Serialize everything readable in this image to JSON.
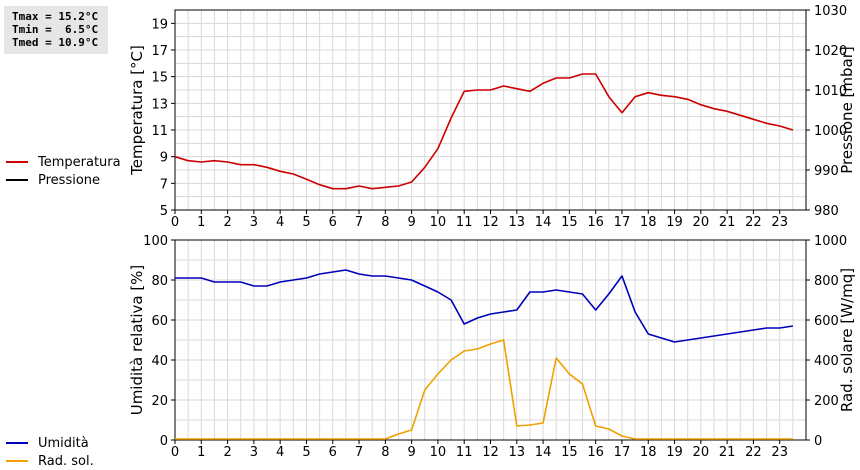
{
  "stats": {
    "tmax": "Tmax = 15.2°C",
    "tmin": "Tmin =  6.5°C",
    "tmed": "Tmed = 10.9°C"
  },
  "colors": {
    "temperature": "#cc0000",
    "pressure": "#000000",
    "humidity": "#0000bb",
    "radiation": "#f0a000",
    "grid": "#d9d9d9",
    "stats_bg": "#e6e6e6"
  },
  "legend_top": [
    {
      "label": "Temperatura",
      "color": "#cc0000"
    },
    {
      "label": "Pressione",
      "color": "#000000"
    }
  ],
  "legend_bottom": [
    {
      "label": "Umidità",
      "color": "#0000bb"
    },
    {
      "label": "Rad. sol.",
      "color": "#f0a000"
    }
  ],
  "chart_data": [
    {
      "type": "line",
      "ylabel": "Temperatura [°C]",
      "y2label": "Pressione [mbar]",
      "xlim": [
        0,
        24
      ],
      "ylim": [
        5,
        20
      ],
      "y2lim": [
        980,
        1030
      ],
      "x_ticks": [
        0,
        1,
        2,
        3,
        4,
        5,
        6,
        7,
        8,
        9,
        10,
        11,
        12,
        13,
        14,
        15,
        16,
        17,
        18,
        19,
        20,
        21,
        22,
        23
      ],
      "y_ticks": [
        5,
        7,
        9,
        11,
        13,
        15,
        17,
        19
      ],
      "y2_ticks": [
        980,
        990,
        1000,
        1010,
        1020,
        1030
      ],
      "grid": true,
      "legend": "left",
      "series": [
        {
          "name": "Temperatura",
          "axis": "left",
          "color": "#cc0000",
          "x": [
            0,
            0.5,
            1,
            1.5,
            2,
            2.5,
            3,
            3.5,
            4,
            4.5,
            5,
            5.5,
            6,
            6.5,
            7,
            7.5,
            8,
            8.5,
            9,
            9.5,
            10,
            10.5,
            11,
            11.5,
            12,
            12.5,
            13,
            13.5,
            14,
            14.5,
            15,
            15.5,
            16,
            16.5,
            17,
            17.5,
            18,
            18.5,
            19,
            19.5,
            20,
            20.5,
            21,
            21.5,
            22,
            22.5,
            23,
            23.5
          ],
          "y": [
            9.0,
            8.7,
            8.6,
            8.7,
            8.6,
            8.4,
            8.4,
            8.2,
            7.9,
            7.7,
            7.3,
            6.9,
            6.6,
            6.6,
            6.8,
            6.6,
            6.7,
            6.8,
            7.1,
            8.2,
            9.6,
            11.9,
            13.9,
            14.0,
            14.0,
            14.3,
            14.1,
            13.9,
            14.5,
            14.9,
            14.9,
            15.2,
            15.2,
            13.5,
            12.3,
            13.5,
            13.8,
            13.6,
            13.5,
            13.3,
            12.9,
            12.6,
            12.4,
            12.1,
            11.8,
            11.5,
            11.3,
            11.0
          ]
        },
        {
          "name": "Pressione",
          "axis": "right",
          "color": "#000000",
          "x": [],
          "y": []
        }
      ]
    },
    {
      "type": "line",
      "ylabel": "Umidità relativa [%]",
      "y2label": "Rad. solare [W/mq]",
      "xlim": [
        0,
        24
      ],
      "ylim": [
        0,
        100
      ],
      "y2lim": [
        0,
        1000
      ],
      "x_ticks": [
        0,
        1,
        2,
        3,
        4,
        5,
        6,
        7,
        8,
        9,
        10,
        11,
        12,
        13,
        14,
        15,
        16,
        17,
        18,
        19,
        20,
        21,
        22,
        23
      ],
      "y_ticks": [
        0,
        20,
        40,
        60,
        80,
        100
      ],
      "y2_ticks": [
        0,
        200,
        400,
        600,
        800,
        1000
      ],
      "grid": true,
      "legend": "left",
      "series": [
        {
          "name": "Umidità",
          "axis": "left",
          "color": "#0000bb",
          "x": [
            0,
            1,
            1.5,
            2,
            2.5,
            3,
            3.5,
            4,
            4.5,
            5,
            5.5,
            6,
            6.5,
            7,
            7.5,
            8,
            8.5,
            9,
            9.5,
            10,
            10.5,
            11,
            11.5,
            12,
            12.5,
            13,
            13.5,
            14,
            14.5,
            15,
            15.5,
            16,
            16.5,
            17,
            17.5,
            18,
            19,
            20,
            21,
            22,
            22.5,
            23,
            23.5
          ],
          "y": [
            81,
            81,
            79,
            79,
            79,
            77,
            77,
            79,
            80,
            81,
            83,
            84,
            85,
            83,
            82,
            82,
            81,
            80,
            77,
            74,
            70,
            58,
            61,
            63,
            64,
            65,
            74,
            74,
            75,
            74,
            73,
            65,
            73,
            82,
            64,
            53,
            49,
            51,
            53,
            55,
            56,
            56,
            57
          ]
        },
        {
          "name": "Rad. sol.",
          "axis": "right",
          "color": "#f0a000",
          "x": [
            0,
            1,
            2,
            3,
            4,
            5,
            6,
            7,
            8,
            8.5,
            9,
            9.5,
            10,
            10.5,
            11,
            11.5,
            12,
            12.5,
            13,
            13.5,
            14,
            14.5,
            15,
            15.5,
            16,
            16.5,
            17,
            17.5,
            18,
            19,
            20,
            21,
            22,
            23,
            23.5
          ],
          "y": [
            5,
            5,
            5,
            5,
            5,
            5,
            5,
            5,
            5,
            30,
            50,
            250,
            330,
            400,
            445,
            455,
            480,
            500,
            70,
            75,
            85,
            410,
            330,
            280,
            70,
            55,
            20,
            5,
            5,
            5,
            5,
            5,
            5,
            5,
            5
          ]
        }
      ]
    }
  ]
}
